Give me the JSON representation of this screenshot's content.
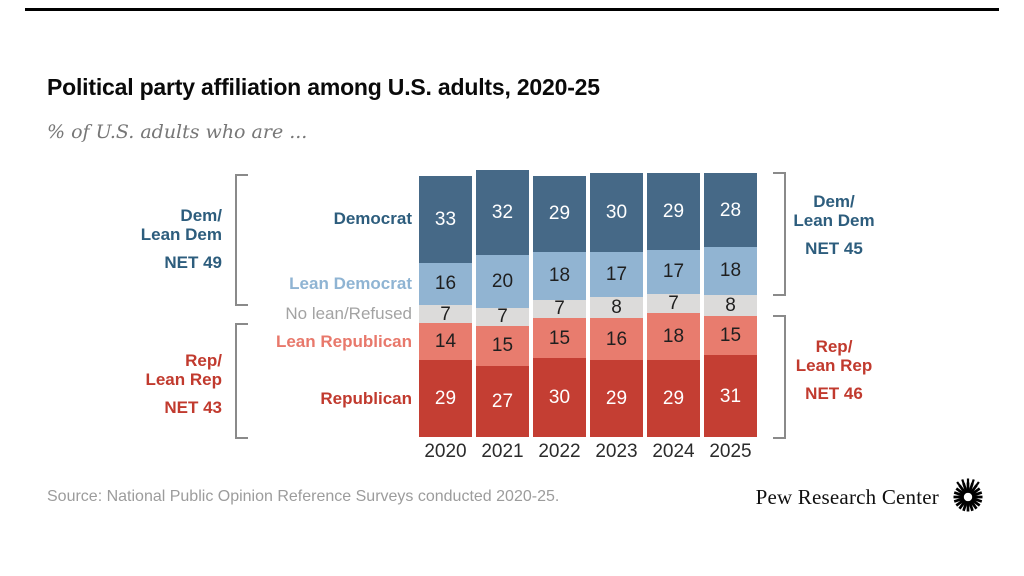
{
  "header": {
    "title": "Political party affiliation among U.S. adults, 2020-25",
    "subtitle": "% of U.S. adults who are ..."
  },
  "chart_data": {
    "type": "bar",
    "stacked": true,
    "orientation": "vertical",
    "categories": [
      "2020",
      "2021",
      "2022",
      "2023",
      "2024",
      "2025"
    ],
    "series": [
      {
        "name": "Democrat",
        "color": "#466987",
        "value_text_color": "#ffffff",
        "row_label_color": "#2d5d7d",
        "row_label_bold": true,
        "values": [
          33,
          32,
          29,
          30,
          29,
          28
        ]
      },
      {
        "name": "Lean Democrat",
        "color": "#91b4d2",
        "value_text_color": "#1f1f1f",
        "row_label_color": "#8fb4d3",
        "row_label_bold": true,
        "values": [
          16,
          20,
          18,
          17,
          17,
          18
        ]
      },
      {
        "name": "No lean/Refused",
        "color": "#dcdbda",
        "value_text_color": "#1f1f1f",
        "row_label_color": "#a3a3a3",
        "row_label_bold": false,
        "values": [
          7,
          7,
          7,
          8,
          7,
          8
        ]
      },
      {
        "name": "Lean Republican",
        "color": "#e87c6e",
        "value_text_color": "#1f1f1f",
        "row_label_color": "#e8786b",
        "row_label_bold": true,
        "values": [
          14,
          15,
          15,
          16,
          18,
          15
        ]
      },
      {
        "name": "Republican",
        "color": "#c43e33",
        "value_text_color": "#ffffff",
        "row_label_color": "#c13a2e",
        "row_label_bold": true,
        "values": [
          29,
          27,
          30,
          29,
          29,
          31
        ]
      }
    ],
    "title": "Political party affiliation among U.S. adults, 2020-25",
    "xlabel": "",
    "ylabel": "% of U.S. adults",
    "legend_position": "inline-left-row-labels",
    "grid": false
  },
  "annotations": {
    "left_dem": {
      "line1": "Dem/",
      "line2": "Lean Dem",
      "net": "NET 49"
    },
    "left_rep": {
      "line1": "Rep/",
      "line2": "Lean Rep",
      "net": "NET 43"
    },
    "right_dem": {
      "line1": "Dem/",
      "line2": "Lean Dem",
      "net": "NET 45"
    },
    "right_rep": {
      "line1": "Rep/",
      "line2": "Lean Rep",
      "net": "NET 46"
    }
  },
  "colors": {
    "dem_text": "#2d5d7d",
    "rep_text": "#c13a2e",
    "title": "#0a0a0a",
    "subtitle": "#777777",
    "source": "#9c9c9c",
    "axis_label": "#2b2b2b",
    "top_rule": "#000000",
    "bracket": "#8a8a8a",
    "brand_icon": "#000000"
  },
  "footer": {
    "source": "Source: National Public Opinion Reference Surveys conducted 2020-25.",
    "brand": "Pew Research Center",
    "brand_icon": "starburst"
  }
}
